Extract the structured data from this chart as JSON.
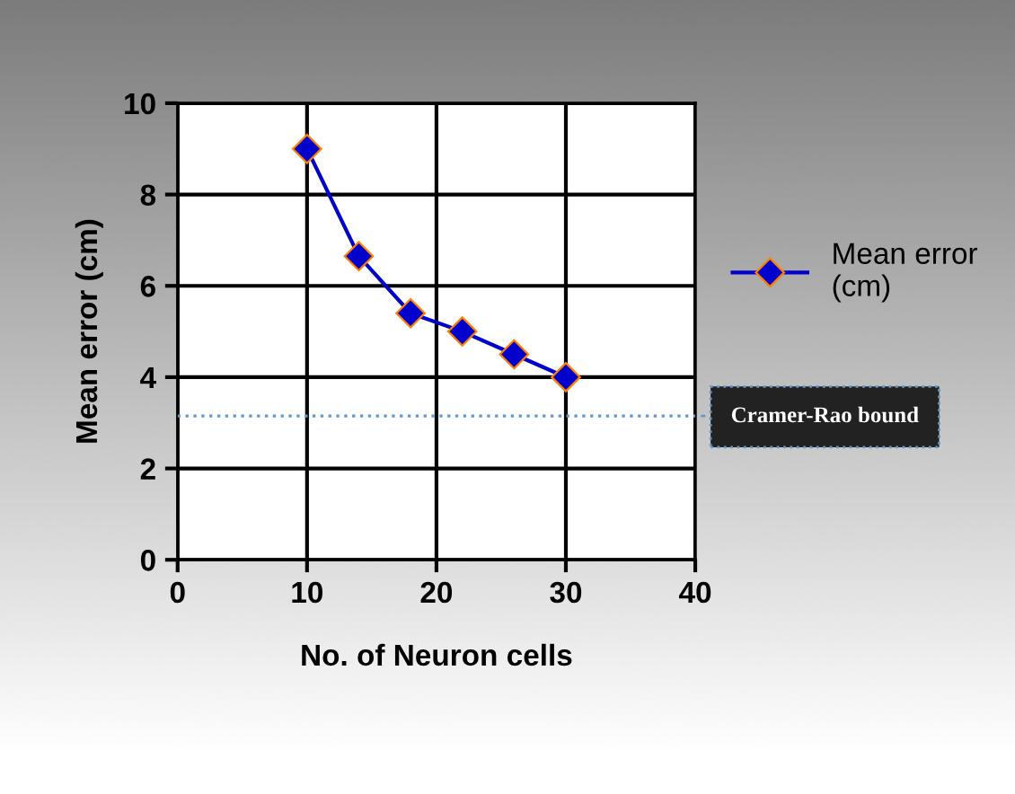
{
  "chart_data": {
    "type": "line",
    "xlabel": "No. of Neuron cells",
    "ylabel": "Mean error (cm)",
    "x": [
      10,
      14,
      18,
      22,
      26,
      30
    ],
    "series": [
      {
        "name": "Mean error (cm)",
        "color": "#0000cc",
        "values": [
          9.0,
          6.65,
          5.4,
          5.0,
          4.5,
          4.0
        ]
      }
    ],
    "xlim": [
      0,
      40
    ],
    "xticks": [
      0,
      10,
      20,
      30,
      40
    ],
    "ylim": [
      0,
      10
    ],
    "yticks": [
      0,
      2,
      4,
      6,
      8,
      10
    ],
    "grid": true,
    "legend": "right",
    "marker": "diamond",
    "line_style": "solid",
    "ref_lines": [
      {
        "axis": "y",
        "value": 3.15,
        "label": "Cramer-Rao bound",
        "color": "#6699cc",
        "line_style": "dotted"
      }
    ]
  }
}
